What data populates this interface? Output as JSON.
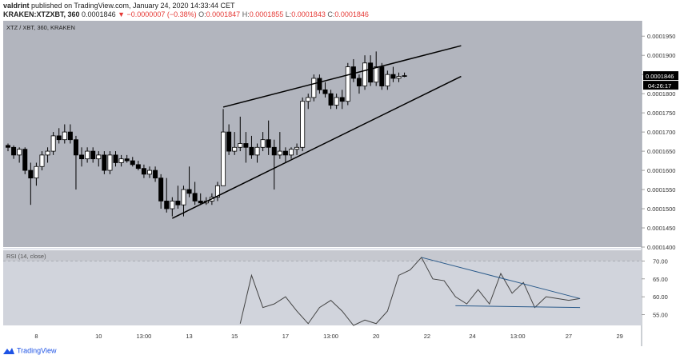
{
  "header": {
    "publisher": "valdrint",
    "published_text": "published on TradingView.com, January 24, 2020 14:33:44 CET",
    "symbol": "KRAKEN:XTZXBT, 360",
    "price": "0.0001846",
    "change_text": "−0.0000007 (−0.38%)",
    "open_label": "O:",
    "open": "0.0001847",
    "high_label": "H:",
    "high": "0.0001855",
    "low_label": "L:",
    "low": "0.0001843",
    "close_label": "C:",
    "close": "0.0001846"
  },
  "footer": {
    "brand": "TradingView"
  },
  "chart_data": [
    {
      "type": "candlestick",
      "title": "XTZ / XBT, 360, KRAKEN",
      "ylim": [
        0.00014,
        0.000199
      ],
      "y_ticks": [
        "0.0001950",
        "0.0001900",
        "0.0001850",
        "0.0001800",
        "0.0001750",
        "0.0001700",
        "0.0001650",
        "0.0001600",
        "0.0001550",
        "0.0001500",
        "0.0001450",
        "0.0001400"
      ],
      "y_tick_values": [
        0.000195,
        0.00019,
        0.000185,
        0.00018,
        0.000175,
        0.00017,
        0.000165,
        0.00016,
        0.000155,
        0.00015,
        0.000145,
        0.00014
      ],
      "x_ticks": [
        "8",
        "10",
        "13:00",
        "13",
        "15",
        "17",
        "13:00",
        "20",
        "22",
        "24",
        "13:00",
        "27",
        "29"
      ],
      "x_tick_index": [
        5,
        16,
        24,
        32,
        40,
        49,
        57,
        65,
        74,
        82,
        90,
        99,
        108
      ],
      "last_price_label": "0.0001846",
      "countdown_label": "04:26:17",
      "last_price": 0.0001846,
      "candles": [
        [
          0.0001665,
          0.000167,
          0.000165,
          0.000166
        ],
        [
          0.000166,
          0.0001665,
          0.000163,
          0.000164
        ],
        [
          0.000164,
          0.000166,
          0.000162,
          0.0001655
        ],
        [
          0.0001655,
          0.000166,
          0.000159,
          0.00016
        ],
        [
          0.00016,
          0.000162,
          0.000151,
          0.000158
        ],
        [
          0.000158,
          0.000162,
          0.000156,
          0.000161
        ],
        [
          0.000161,
          0.000165,
          0.00016,
          0.000164
        ],
        [
          0.000164,
          0.000166,
          0.000162,
          0.000165
        ],
        [
          0.000165,
          0.00017,
          0.000164,
          0.000169
        ],
        [
          0.000169,
          0.000171,
          0.000167,
          0.000168
        ],
        [
          0.000168,
          0.000172,
          0.000167,
          0.00017
        ],
        [
          0.00017,
          0.000172,
          0.000167,
          0.000168
        ],
        [
          0.000168,
          0.000169,
          0.000155,
          0.000164
        ],
        [
          0.000164,
          0.000166,
          0.000161,
          0.000163
        ],
        [
          0.000163,
          0.000166,
          0.000162,
          0.000165
        ],
        [
          0.000165,
          0.000166,
          0.000162,
          0.000163
        ],
        [
          0.000163,
          0.000165,
          0.000161,
          0.000164
        ],
        [
          0.000164,
          0.000165,
          0.000159,
          0.00016
        ],
        [
          0.00016,
          0.000165,
          0.000159,
          0.000164
        ],
        [
          0.000164,
          0.000165,
          0.000161,
          0.000162
        ],
        [
          0.000162,
          0.000164,
          0.000161,
          0.000163
        ],
        [
          0.000163,
          0.000164,
          0.000162,
          0.0001625
        ],
        [
          0.0001625,
          0.0001635,
          0.000161,
          0.0001615
        ],
        [
          0.0001615,
          0.0001625,
          0.00016,
          0.0001605
        ],
        [
          0.0001605,
          0.0001615,
          0.000158,
          0.000159
        ],
        [
          0.000159,
          0.000161,
          0.000158,
          0.00016
        ],
        [
          0.00016,
          0.000161,
          0.000157,
          0.000158
        ],
        [
          0.000158,
          0.000159,
          0.00015,
          0.000152
        ],
        [
          0.000152,
          0.000158,
          0.000149,
          0.00015
        ],
        [
          0.00015,
          0.000153,
          0.000148,
          0.000152
        ],
        [
          0.000152,
          0.000156,
          0.00015,
          0.000151
        ],
        [
          0.000151,
          0.000156,
          0.000148,
          0.000155
        ],
        [
          0.000155,
          0.000161,
          0.000153,
          0.000154
        ],
        [
          0.000154,
          0.000157,
          0.000151,
          0.000152
        ],
        [
          0.000152,
          0.000154,
          0.000151,
          0.0001515
        ],
        [
          0.0001515,
          0.000153,
          0.000151,
          0.000152
        ],
        [
          0.000152,
          0.000154,
          0.000151,
          0.000153
        ],
        [
          0.000153,
          0.000157,
          0.000152,
          0.000156
        ],
        [
          0.000156,
          0.000176,
          0.000156,
          0.00017
        ],
        [
          0.00017,
          0.000172,
          0.000164,
          0.000165
        ],
        [
          0.000165,
          0.00017,
          0.000164,
          0.000166
        ],
        [
          0.000166,
          0.000174,
          0.000165,
          0.000167
        ],
        [
          0.000167,
          0.00017,
          0.000162,
          0.000166
        ],
        [
          0.000166,
          0.000169,
          0.000163,
          0.000164
        ],
        [
          0.000164,
          0.000167,
          0.000162,
          0.000166
        ],
        [
          0.000166,
          0.00017,
          0.000165,
          0.000168
        ],
        [
          0.000168,
          0.000173,
          0.000164,
          0.000166
        ],
        [
          0.000166,
          0.000168,
          0.000155,
          0.000164
        ],
        [
          0.000164,
          0.00017,
          0.000163,
          0.000165
        ],
        [
          0.000165,
          0.000166,
          0.000162,
          0.000164
        ],
        [
          0.000164,
          0.000166,
          0.000163,
          0.0001655
        ],
        [
          0.0001655,
          0.000167,
          0.000164,
          0.000166
        ],
        [
          0.000166,
          0.000179,
          0.000165,
          0.000178
        ],
        [
          0.000178,
          0.00018,
          0.000176,
          0.000179
        ],
        [
          0.000179,
          0.000185,
          0.000178,
          0.000184
        ],
        [
          0.000184,
          0.000185,
          0.00018,
          0.000181
        ],
        [
          0.000181,
          0.000183,
          0.000179,
          0.00018
        ],
        [
          0.00018,
          0.000181,
          0.000176,
          0.000177
        ],
        [
          0.000177,
          0.00018,
          0.000176,
          0.000179
        ],
        [
          0.000179,
          0.000181,
          0.000176,
          0.000178
        ],
        [
          0.000178,
          0.000188,
          0.000177,
          0.000187
        ],
        [
          0.000187,
          0.000189,
          0.000183,
          0.000184
        ],
        [
          0.000184,
          0.000185,
          0.00018,
          0.000182
        ],
        [
          0.000182,
          0.00019,
          0.000181,
          0.000188
        ],
        [
          0.000188,
          0.00019,
          0.000182,
          0.000183
        ],
        [
          0.000183,
          0.000191,
          0.000182,
          0.000187
        ],
        [
          0.000187,
          0.000188,
          0.000181,
          0.000182
        ],
        [
          0.000182,
          0.000186,
          0.000181,
          0.000185
        ],
        [
          0.000185,
          0.000187,
          0.000183,
          0.000184
        ],
        [
          0.000184,
          0.0001855,
          0.000183,
          0.0001845
        ],
        [
          0.0001847,
          0.0001855,
          0.0001843,
          0.0001846
        ]
      ],
      "wedge_upper": [
        [
          38,
          0.0001765
        ],
        [
          80,
          0.0001925
        ]
      ],
      "wedge_lower": [
        [
          29,
          0.0001475
        ],
        [
          80,
          0.0001845
        ]
      ]
    },
    {
      "type": "line",
      "title": "RSI (14, close)",
      "ylim": [
        52.0,
        73.0
      ],
      "y_ticks": [
        "70.00",
        "65.00",
        "60.00",
        "55.00"
      ],
      "y_tick_values": [
        70,
        65,
        60,
        55
      ],
      "band": [
        50,
        70
      ],
      "series": [
        {
          "values": [
            [
              41,
              52.5
            ],
            [
              43,
              66.0
            ],
            [
              45,
              57.0
            ],
            [
              47,
              58.0
            ],
            [
              49,
              60.0
            ],
            [
              51,
              56.0
            ],
            [
              53,
              52.5
            ],
            [
              55,
              57.0
            ],
            [
              57,
              59.0
            ],
            [
              59,
              56.0
            ],
            [
              61,
              52.0
            ],
            [
              63,
              53.5
            ],
            [
              65,
              52.5
            ],
            [
              67,
              56.0
            ],
            [
              69,
              66.0
            ],
            [
              71,
              67.5
            ],
            [
              73,
              71.0
            ],
            [
              75,
              65.0
            ],
            [
              77,
              64.5
            ],
            [
              79,
              60.0
            ],
            [
              81,
              58.0
            ],
            [
              83,
              62.0
            ],
            [
              85,
              58.0
            ],
            [
              87,
              66.5
            ],
            [
              89,
              61.0
            ],
            [
              91,
              64.0
            ],
            [
              93,
              57.0
            ],
            [
              95,
              60.0
            ],
            [
              97,
              59.5
            ],
            [
              99,
              59.0
            ],
            [
              101,
              59.5
            ]
          ]
        }
      ],
      "trend_upper": [
        [
          73,
          71.0
        ],
        [
          101,
          59.5
        ]
      ],
      "trend_lower": [
        [
          79,
          57.5
        ],
        [
          101,
          57.0
        ]
      ]
    }
  ]
}
